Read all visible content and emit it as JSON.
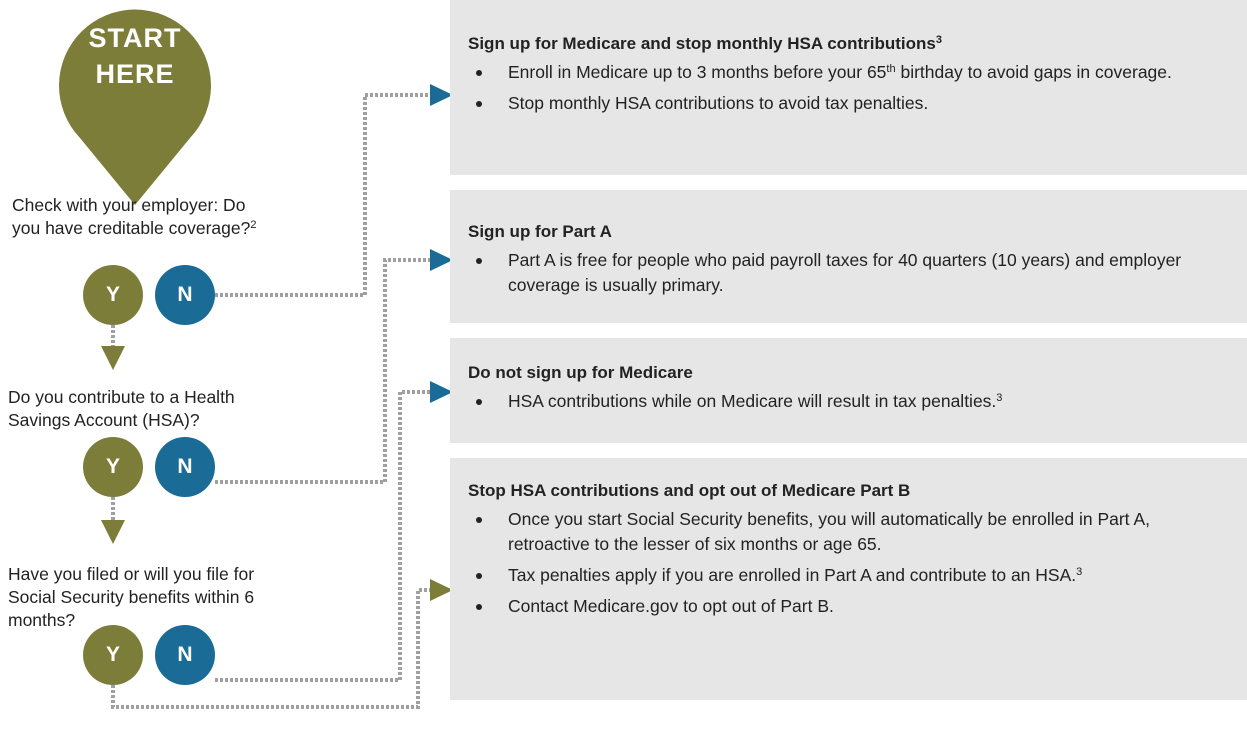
{
  "start": [
    "START",
    "HERE"
  ],
  "questions": [
    {
      "lines": [
        "Check with your employer: Do",
        "you have creditable coverage?"
      ],
      "sup": "2",
      "yes": "Y",
      "no": "N"
    },
    {
      "lines": [
        "Do you contribute to a Health",
        "Savings Account (HSA)?"
      ],
      "yes": "Y",
      "no": "N"
    },
    {
      "lines": [
        "Have you filed or will you file for",
        "Social Security benefits within 6",
        "months?"
      ],
      "yes": "Y",
      "no": "N"
    }
  ],
  "boxes": [
    {
      "title": "Sign up for Medicare and stop monthly HSA contributions",
      "title_sup": "3",
      "bullets": [
        [
          "Enroll in Medicare up to 3 months before your 65",
          {
            "sup": "th"
          },
          " birthday to avoid gaps in coverage."
        ],
        [
          "Stop monthly HSA contributions to avoid tax penalties."
        ]
      ]
    },
    {
      "title": "Sign up for Part A",
      "bullets": [
        [
          "Part A is free for people who paid payroll taxes for 40 quarters (10 years) and employer coverage is usually primary."
        ]
      ]
    },
    {
      "title": "Do not sign up for Medicare",
      "bullets": [
        [
          "HSA contributions while on Medicare will result in tax penalties.",
          {
            "sup": "3"
          }
        ]
      ]
    },
    {
      "title": "Stop HSA contributions and opt out of Medicare Part B",
      "bullets": [
        [
          "Once you start Social Security benefits, you will automatically be enrolled in Part A, retroactive to the lesser of six months or age 65."
        ],
        [
          "Tax penalties apply if you are enrolled in Part A and contribute to an HSA.",
          {
            "sup": "3"
          }
        ],
        [
          "Contact Medicare.gov to opt out of Part B."
        ]
      ]
    }
  ]
}
